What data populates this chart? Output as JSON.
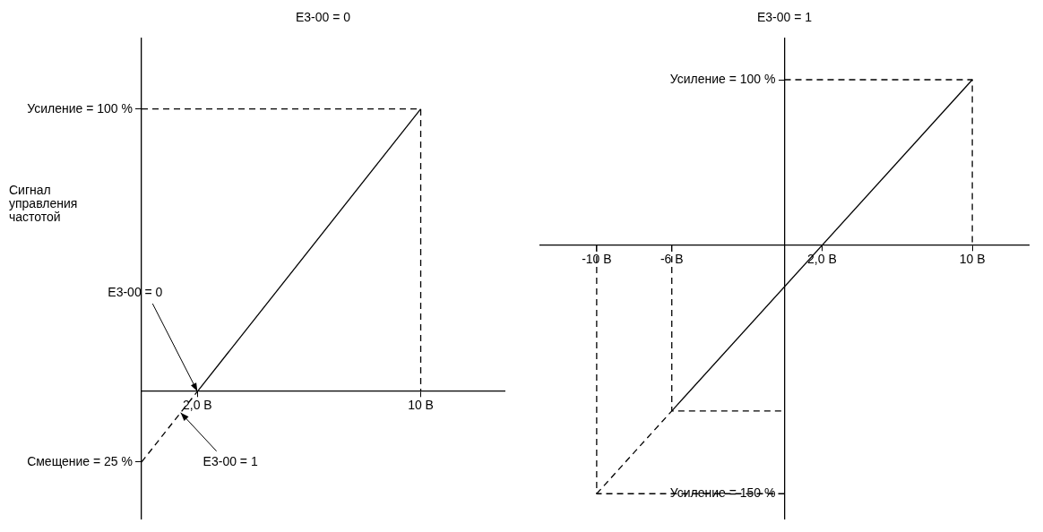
{
  "chart_data": [
    {
      "type": "line",
      "title": "E3-00 = 0",
      "ylabel": "Сигнал управления частотой",
      "xlim": [
        0,
        13
      ],
      "ylim": [
        -45,
        125
      ],
      "xticks": [
        {
          "value": 2,
          "label": "2,0 В"
        },
        {
          "value": 10,
          "label": "10 В"
        }
      ],
      "yticks": [
        {
          "value": 100,
          "label": "Усиление = 100 %"
        },
        {
          "value": -25,
          "label": "Смещение = 25 %"
        }
      ],
      "grid": false,
      "legend": false,
      "marker": "none",
      "annotations": [
        {
          "text": "E3-00 = 0",
          "x": 2,
          "y": 0
        },
        {
          "text": "E3-00 = 1",
          "x": 1.4,
          "y": -7.5
        }
      ],
      "series": [
        {
          "color": "#000000",
          "line_style": "solid",
          "x": [
            2,
            10
          ],
          "values": [
            0,
            100
          ]
        },
        {
          "color": "#000000",
          "line_style": "dashed",
          "x": [
            0,
            2
          ],
          "values": [
            -25,
            0
          ]
        },
        {
          "color": "#000000",
          "line_style": "dashed",
          "x": [
            0,
            10,
            10
          ],
          "values": [
            100,
            100,
            0
          ]
        }
      ]
    },
    {
      "type": "line",
      "title": "E3-00 = 1",
      "xlim": [
        -13,
        13
      ],
      "ylim": [
        -165,
        125
      ],
      "xticks": [
        {
          "value": -10,
          "label": "-10 В"
        },
        {
          "value": -6,
          "label": "-6 В"
        },
        {
          "value": 2,
          "label": "2,0 В"
        },
        {
          "value": 10,
          "label": "10 В"
        }
      ],
      "yticks": [
        {
          "value": 100,
          "label": "Усиление = 100 %"
        },
        {
          "value": -150,
          "label": "Усиление = 150 %"
        }
      ],
      "grid": false,
      "legend": false,
      "marker": "none",
      "series": [
        {
          "color": "#000000",
          "line_style": "solid",
          "x": [
            -6,
            10
          ],
          "values": [
            -100,
            100
          ]
        },
        {
          "color": "#000000",
          "line_style": "dashed",
          "x": [
            -10,
            -6
          ],
          "values": [
            -150,
            -100
          ]
        },
        {
          "color": "#000000",
          "line_style": "dashed",
          "x": [
            0,
            10,
            10
          ],
          "values": [
            100,
            100,
            0
          ]
        },
        {
          "color": "#000000",
          "line_style": "dashed",
          "x": [
            0,
            -10,
            -10
          ],
          "values": [
            -150,
            -150,
            0
          ]
        },
        {
          "color": "#000000",
          "line_style": "dashed",
          "x": [
            -6,
            -6,
            0
          ],
          "values": [
            0,
            -100,
            -100
          ]
        }
      ]
    }
  ]
}
